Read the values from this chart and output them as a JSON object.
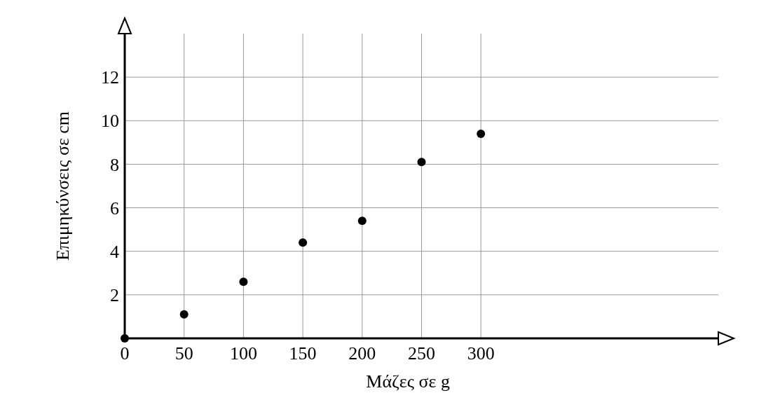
{
  "chart_data": {
    "type": "scatter",
    "xlabel": "Μάζες σε g",
    "ylabel": "Επιμηκύνσεις σε cm",
    "x": [
      0,
      50,
      100,
      150,
      200,
      250,
      300
    ],
    "values": [
      0,
      1.1,
      2.6,
      4.4,
      5.4,
      8.1,
      9.4
    ],
    "color": "#000000",
    "marker": "circle",
    "xlim": [
      0,
      500
    ],
    "xticks": [
      0,
      50,
      100,
      150,
      200,
      250,
      300
    ],
    "ylim": [
      0,
      14
    ],
    "yticks": [
      {
        "value": 0,
        "label": null
      },
      2,
      4,
      6,
      8,
      10,
      12
    ],
    "grid": true
  }
}
